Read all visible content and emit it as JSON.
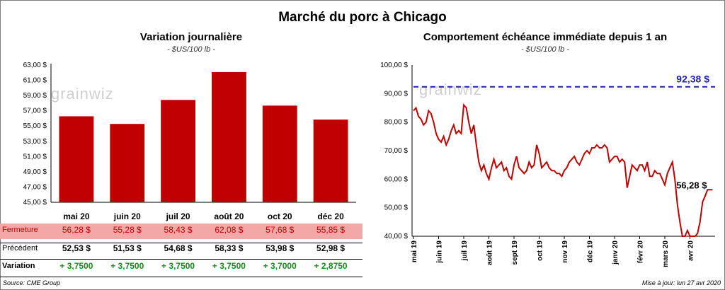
{
  "page": {
    "title": "Marché du porc à Chicago",
    "source": "Source: CME Group",
    "updated": "Mise à jour: lun 27 avr 2020",
    "watermark": "grainwiz"
  },
  "colors": {
    "bar": "#c00000",
    "line": "#c00000",
    "reference": "#1f1fa8",
    "gain": "#1a8a1a",
    "fermeture_bg": "#f4a7a7",
    "fermeture_text": "#c00000"
  },
  "chart_data": [
    {
      "type": "bar",
      "title": "Variation journalière",
      "subtitle": "- $US/100 lb -",
      "categories": [
        "mai 20",
        "juin 20",
        "juil 20",
        "août 20",
        "oct 20",
        "déc 20"
      ],
      "values": [
        56.28,
        55.28,
        58.43,
        62.08,
        57.68,
        55.85
      ],
      "ylim": [
        45,
        63
      ],
      "yticks": [
        "45,00 $",
        "47,00 $",
        "49,00 $",
        "51,00 $",
        "53,00 $",
        "55,00 $",
        "57,00 $",
        "59,00 $",
        "61,00 $",
        "63,00 $"
      ],
      "grid": false,
      "table": {
        "rows": [
          {
            "label": "Fermeture",
            "values": [
              "56,28 $",
              "55,28 $",
              "58,43 $",
              "62,08 $",
              "57,68 $",
              "55,85 $"
            ]
          },
          {
            "label": "Précédent",
            "values": [
              "52,53 $",
              "51,53 $",
              "54,68 $",
              "58,33 $",
              "53,98 $",
              "52,98 $"
            ]
          },
          {
            "label": "Variation",
            "values": [
              "+ 3,7500",
              "+ 3,7500",
              "+ 3,7500",
              "+ 3,7500",
              "+ 3,7000",
              "+ 2,8750"
            ]
          }
        ]
      }
    },
    {
      "type": "line",
      "title": "Comportement échéance immédiate depuis 1 an",
      "subtitle": "- $US/100 lb -",
      "ylim": [
        40,
        100
      ],
      "yticks": [
        "40,00 $",
        "50,00 $",
        "60,00 $",
        "70,00 $",
        "80,00 $",
        "90,00 $",
        "100,00 $"
      ],
      "xticks": [
        "mai 19",
        "juin 19",
        "juil 19",
        "août 19",
        "sept 19",
        "oct 19",
        "nov 19",
        "déc 19",
        "janv 20",
        "févr 20",
        "mars 20",
        "avr 20"
      ],
      "reference_value": 92.38,
      "reference_label": "92,38 $",
      "last_label": "56,28 $",
      "series": [
        {
          "x": [
            0,
            0.1,
            0.2,
            0.3,
            0.4,
            0.5,
            0.6,
            0.7,
            0.8,
            0.9,
            1.0,
            1.1,
            1.2,
            1.3,
            1.4,
            1.5,
            1.6,
            1.7,
            1.8,
            1.9,
            2.0,
            2.1,
            2.2,
            2.3,
            2.4,
            2.5,
            2.6,
            2.7,
            2.8,
            2.9,
            3.0,
            3.1,
            3.2,
            3.3,
            3.4,
            3.5,
            3.6,
            3.7,
            3.8,
            3.9,
            4.0,
            4.1,
            4.2,
            4.3,
            4.4,
            4.5,
            4.6,
            4.7,
            4.8,
            4.9,
            5.0,
            5.1,
            5.2,
            5.3,
            5.4,
            5.5,
            5.6,
            5.7,
            5.8,
            5.9,
            6.0,
            6.1,
            6.2,
            6.3,
            6.4,
            6.5,
            6.6,
            6.7,
            6.8,
            6.9,
            7.0,
            7.1,
            7.2,
            7.3,
            7.4,
            7.5,
            7.6,
            7.7,
            7.8,
            7.9,
            8.0,
            8.1,
            8.2,
            8.3,
            8.4,
            8.5,
            8.6,
            8.7,
            8.8,
            8.9,
            9.0,
            9.1,
            9.2,
            9.3,
            9.4,
            9.5,
            9.6,
            9.7,
            9.8,
            9.9,
            10.0,
            10.1,
            10.2,
            10.3,
            10.4,
            10.5,
            10.6,
            10.7,
            10.8,
            10.9,
            11.0,
            11.1,
            11.2,
            11.3,
            11.4,
            11.5,
            11.6,
            11.7,
            11.8,
            11.9
          ],
          "values": [
            84,
            85,
            82,
            81,
            79,
            80,
            84,
            83,
            80,
            76,
            74,
            73,
            75,
            72,
            74,
            77,
            79,
            76,
            77,
            76,
            86,
            85,
            80,
            76,
            79,
            72,
            66,
            63,
            65,
            62,
            60,
            64,
            67,
            64,
            65,
            66,
            63,
            64,
            61,
            60,
            65,
            68,
            64,
            63,
            62,
            63,
            66,
            64,
            65,
            72,
            69,
            64,
            65,
            66,
            64,
            63,
            63,
            62,
            62,
            61,
            63,
            64,
            66,
            67,
            68,
            66,
            65,
            67,
            69,
            70,
            69,
            71,
            71,
            72,
            71,
            71,
            72,
            71,
            66,
            67,
            68,
            68,
            66,
            67,
            66,
            57,
            61,
            65,
            64,
            63,
            65,
            65,
            63,
            66,
            61,
            61,
            63,
            62,
            62,
            60,
            58,
            62,
            64,
            66,
            60,
            51,
            45,
            40,
            40,
            42,
            40,
            39,
            40,
            41,
            45,
            52,
            54,
            56.28,
            56.28,
            56.28
          ]
        }
      ]
    }
  ]
}
